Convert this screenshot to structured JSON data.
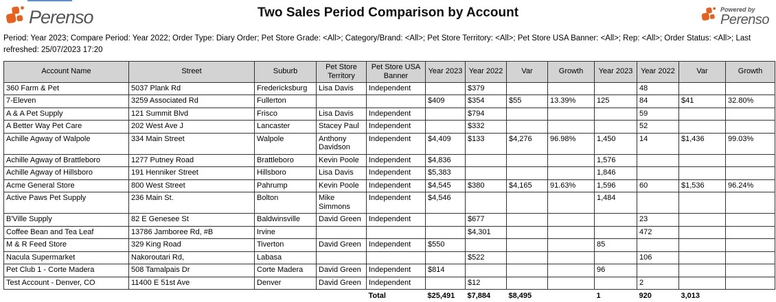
{
  "branding": {
    "logo_text": "Perenso",
    "powered_by_label": "Powered by",
    "powered_by_logo_text": "Perenso",
    "orange": "#e8611c",
    "gray": "#54565a"
  },
  "header": {
    "title": "Two Sales Period Comparison by Account",
    "filters": "Period: Year 2023; Compare Period: Year 2022; Order Type: Diary Order; Pet Store Grade: <All>; Category/Brand: <All>; Pet Store Territory: <All>; Pet Store USA Banner: <All>; Rep: <All>; Order Status: <All>; Last refreshed: 25/07/2023 17:20"
  },
  "table": {
    "columns": [
      "Account Name",
      "Street",
      "Suburb",
      "Pet Store Territory",
      "Pet Store USA Banner",
      "Year 2023",
      "Year 2022",
      "Var",
      "Growth",
      "Year 2023",
      "Year 2022",
      "Var",
      "Growth"
    ],
    "rows": [
      [
        "360 Farm & Pet",
        "5037 Plank Rd",
        "Fredericksburg",
        "Lisa Davis",
        "Independent",
        "",
        "$379",
        "",
        "",
        "",
        "48",
        "",
        ""
      ],
      [
        "7-Eleven",
        "3259 Associated Rd",
        "Fullerton",
        "",
        "",
        "$409",
        "$354",
        "$55",
        "13.39%",
        "125",
        "84",
        "$41",
        "32.80%"
      ],
      [
        "A & A Pet Supply",
        "121 Summit Blvd",
        "Frisco",
        "Lisa Davis",
        "Independent",
        "",
        "$794",
        "",
        "",
        "",
        "59",
        "",
        ""
      ],
      [
        "A Better Way Pet Care",
        "202 West Ave J",
        "Lancaster",
        "Stacey Paul",
        "Independent",
        "",
        "$332",
        "",
        "",
        "",
        "52",
        "",
        ""
      ],
      [
        "Achille Agway  of Walpole",
        "334 Main Street",
        "Walpole",
        "Anthony Davidson",
        "Independent",
        "$4,409",
        "$133",
        "$4,276",
        "96.98%",
        "1,450",
        "14",
        "$1,436",
        "99.03%"
      ],
      [
        "Achille Agway of Brattleboro",
        "1277 Putney Road",
        "Brattleboro",
        "Kevin Poole",
        "Independent",
        "$4,836",
        "",
        "",
        "",
        "1,576",
        "",
        "",
        ""
      ],
      [
        "Achille Agway of Hillsboro",
        "191 Henniker Street",
        "Hillsboro",
        "Lisa Davis",
        "Independent",
        "$5,383",
        "",
        "",
        "",
        "1,846",
        "",
        "",
        ""
      ],
      [
        "Acme General Store",
        "800 West Street",
        "Pahrump",
        "Kevin Poole",
        "Independent",
        "$4,545",
        "$380",
        "$4,165",
        "91.63%",
        "1,596",
        "60",
        "$1,536",
        "96.24%"
      ],
      [
        "Active Paws Pet Supply",
        "236 Main St.",
        "Bolton",
        "Mike Simmons",
        "Independent",
        "$4,546",
        "",
        "",
        "",
        "1,484",
        "",
        "",
        ""
      ],
      [
        "B'Ville Supply",
        "82 E Genesee St",
        "Baldwinsville",
        "David Green",
        "Independent",
        "",
        "$677",
        "",
        "",
        "",
        "23",
        "",
        ""
      ],
      [
        "Coffee Bean and Tea Leaf",
        "13786 Jamboree Rd, #B",
        "Irvine",
        "",
        "",
        "",
        "$4,301",
        "",
        "",
        "",
        "472",
        "",
        ""
      ],
      [
        "M & R Feed Store",
        "329 King Road",
        "Tiverton",
        "David Green",
        "Independent",
        "$550",
        "",
        "",
        "",
        "85",
        "",
        "",
        ""
      ],
      [
        "Nacula Supermarket",
        "Nakoroutari Rd,",
        "Labasa",
        "",
        "",
        "",
        "$522",
        "",
        "",
        "",
        "106",
        "",
        ""
      ],
      [
        "Pet Club 1 - Corte Madera",
        "508 Tamalpais Dr",
        "Corte Madera",
        "David Green",
        "Independent",
        "$814",
        "",
        "",
        "",
        "96",
        "",
        "",
        ""
      ],
      [
        "Test Account - Denver, CO",
        "11400 E 51st Ave",
        "Denver",
        "David Green",
        "Independent",
        "",
        "$12",
        "",
        "",
        "",
        "2",
        "",
        ""
      ]
    ],
    "total_cells": [
      "",
      "",
      "",
      "",
      "Total",
      "$25,491",
      "$7,884",
      "$8,495",
      "",
      "1",
      "920",
      "3,013",
      ""
    ]
  }
}
